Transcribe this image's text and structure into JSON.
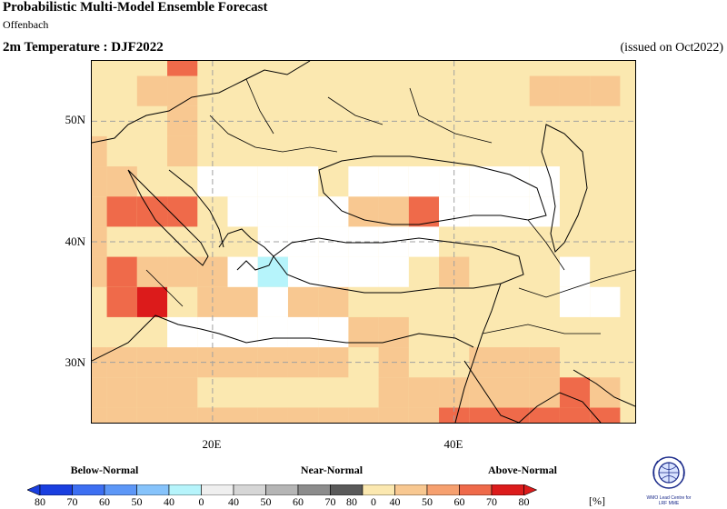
{
  "header": {
    "title": "Probabilistic Multi-Model Ensemble Forecast",
    "subtitle": "Offenbach",
    "variable": "2m Temperature : DJF2022",
    "issued": "(issued on Oct2022)"
  },
  "map": {
    "lat_labels": [
      "50N",
      "40N",
      "30N"
    ],
    "lon_labels": [
      "20E",
      "40E"
    ],
    "extent": {
      "lon_min": 10,
      "lon_max": 55,
      "lat_min": 25,
      "lat_max": 55
    },
    "grid_deg": 2.5,
    "base_category": "Above-Normal 40-50",
    "cells": [
      {
        "lon": 17.5,
        "lat": 52.5,
        "pct": 55
      },
      {
        "lon": 15,
        "lat": 52.5,
        "pct": 55
      },
      {
        "lon": 17.5,
        "lat": 50,
        "pct": 55
      },
      {
        "lon": 17.5,
        "lat": 55,
        "pct": 65
      },
      {
        "lon": 47.5,
        "lat": 52.5,
        "pct": 55
      },
      {
        "lon": 50,
        "lat": 52.5,
        "pct": 55
      },
      {
        "lon": 52.5,
        "lat": 52.5,
        "pct": 55
      },
      {
        "lon": 10,
        "lat": 47.5,
        "pct": 55
      },
      {
        "lon": 10,
        "lat": 45,
        "pct": 55
      },
      {
        "lon": 10,
        "lat": 42.5,
        "pct": 55
      },
      {
        "lon": 10,
        "lat": 40,
        "pct": 55
      },
      {
        "lon": 12.5,
        "lat": 45,
        "pct": 55
      },
      {
        "lon": 12.5,
        "lat": 42.5,
        "pct": 65
      },
      {
        "lon": 15,
        "lat": 42.5,
        "pct": 65
      },
      {
        "lon": 17.5,
        "lat": 42.5,
        "pct": 65
      },
      {
        "lon": 35,
        "lat": 42.5,
        "pct": 55
      },
      {
        "lon": 37.5,
        "lat": 42.5,
        "pct": 65
      },
      {
        "lon": 32.5,
        "lat": 42.5,
        "pct": 55
      },
      {
        "lon": 10,
        "lat": 37.5,
        "pct": 55
      },
      {
        "lon": 12.5,
        "lat": 37.5,
        "pct": 65
      },
      {
        "lon": 12.5,
        "lat": 35,
        "pct": 65
      },
      {
        "lon": 15,
        "lat": 35,
        "pct": 75
      },
      {
        "lon": 15,
        "lat": 37.5,
        "pct": 55
      },
      {
        "lon": 17.5,
        "lat": 37.5,
        "pct": 55
      },
      {
        "lon": 20,
        "lat": 37.5,
        "pct": 55
      },
      {
        "lon": 20,
        "lat": 35,
        "pct": 55
      },
      {
        "lon": 22.5,
        "lat": 35,
        "pct": 55
      },
      {
        "lon": 27.5,
        "lat": 35,
        "pct": 55
      },
      {
        "lon": 30,
        "lat": 35,
        "pct": 55
      },
      {
        "lon": 32.5,
        "lat": 32.5,
        "pct": 55
      },
      {
        "lon": 35,
        "lat": 32.5,
        "pct": 55
      },
      {
        "lon": 35,
        "lat": 30,
        "pct": 55
      },
      {
        "lon": 35,
        "lat": 27.5,
        "pct": 55
      },
      {
        "lon": 30,
        "lat": 30,
        "pct": 55
      },
      {
        "lon": 27.5,
        "lat": 30,
        "pct": 55
      },
      {
        "lon": 25,
        "lat": 30,
        "pct": 55
      },
      {
        "lon": 22.5,
        "lat": 30,
        "pct": 55
      },
      {
        "lon": 20,
        "lat": 30,
        "pct": 55
      },
      {
        "lon": 17.5,
        "lat": 30,
        "pct": 55
      },
      {
        "lon": 15,
        "lat": 30,
        "pct": 55
      },
      {
        "lon": 12.5,
        "lat": 30,
        "pct": 55
      },
      {
        "lon": 10,
        "lat": 30,
        "pct": 55
      },
      {
        "lon": 10,
        "lat": 27.5,
        "pct": 55
      },
      {
        "lon": 12.5,
        "lat": 27.5,
        "pct": 55
      },
      {
        "lon": 15,
        "lat": 27.5,
        "pct": 55
      },
      {
        "lon": 17.5,
        "lat": 27.5,
        "pct": 55
      },
      {
        "lon": 10,
        "lat": 25,
        "pct": 55
      },
      {
        "lon": 12.5,
        "lat": 25,
        "pct": 55
      },
      {
        "lon": 15,
        "lat": 25,
        "pct": 55
      },
      {
        "lon": 17.5,
        "lat": 25,
        "pct": 55
      },
      {
        "lon": 20,
        "lat": 25,
        "pct": 55
      },
      {
        "lon": 22.5,
        "lat": 25,
        "pct": 55
      },
      {
        "lon": 25,
        "lat": 25,
        "pct": 55
      },
      {
        "lon": 27.5,
        "lat": 25,
        "pct": 55
      },
      {
        "lon": 30,
        "lat": 25,
        "pct": 55
      },
      {
        "lon": 32.5,
        "lat": 25,
        "pct": 55
      },
      {
        "lon": 35,
        "lat": 25,
        "pct": 55
      },
      {
        "lon": 37.5,
        "lat": 25,
        "pct": 55
      },
      {
        "lon": 40,
        "lat": 25,
        "pct": 65
      },
      {
        "lon": 42.5,
        "lat": 25,
        "pct": 65
      },
      {
        "lon": 45,
        "lat": 25,
        "pct": 65
      },
      {
        "lon": 47.5,
        "lat": 25,
        "pct": 65
      },
      {
        "lon": 50,
        "lat": 25,
        "pct": 65
      },
      {
        "lon": 52.5,
        "lat": 25,
        "pct": 65
      },
      {
        "lon": 37.5,
        "lat": 27.5,
        "pct": 55
      },
      {
        "lon": 40,
        "lat": 27.5,
        "pct": 55
      },
      {
        "lon": 42.5,
        "lat": 27.5,
        "pct": 55
      },
      {
        "lon": 45,
        "lat": 27.5,
        "pct": 55
      },
      {
        "lon": 47.5,
        "lat": 27.5,
        "pct": 55
      },
      {
        "lon": 50,
        "lat": 27.5,
        "pct": 65
      },
      {
        "lon": 52.5,
        "lat": 27.5,
        "pct": 55
      },
      {
        "lon": 42.5,
        "lat": 30,
        "pct": 55
      },
      {
        "lon": 45,
        "lat": 30,
        "pct": 55
      },
      {
        "lon": 47.5,
        "lat": 30,
        "pct": 55
      },
      {
        "lon": 40,
        "lat": 37.5,
        "pct": 55
      },
      {
        "lon": 17.5,
        "lat": 47.5,
        "pct": 50
      },
      {
        "lon": 20,
        "lat": 45,
        "pct": 0
      },
      {
        "lon": 22.5,
        "lat": 45,
        "pct": 0
      },
      {
        "lon": 25,
        "lat": 45,
        "pct": 0
      },
      {
        "lon": 27.5,
        "lat": 45,
        "pct": 0
      },
      {
        "lon": 22.5,
        "lat": 42.5,
        "pct": 0
      },
      {
        "lon": 25,
        "lat": 42.5,
        "pct": 0
      },
      {
        "lon": 27.5,
        "lat": 42.5,
        "pct": 0
      },
      {
        "lon": 30,
        "lat": 42.5,
        "pct": 0
      },
      {
        "lon": 25,
        "lat": 40,
        "pct": 0
      },
      {
        "lon": 27.5,
        "lat": 40,
        "pct": 0
      },
      {
        "lon": 30,
        "lat": 40,
        "pct": 0
      },
      {
        "lon": 32.5,
        "lat": 40,
        "pct": 0
      },
      {
        "lon": 35,
        "lat": 40,
        "pct": 0
      },
      {
        "lon": 37.5,
        "lat": 40,
        "pct": 0
      },
      {
        "lon": 22.5,
        "lat": 37.5,
        "pct": 0
      },
      {
        "lon": 27.5,
        "lat": 37.5,
        "pct": 0
      },
      {
        "lon": 30,
        "lat": 37.5,
        "pct": 0
      },
      {
        "lon": 32.5,
        "lat": 37.5,
        "pct": 0
      },
      {
        "lon": 35,
        "lat": 37.5,
        "pct": 0
      },
      {
        "lon": 25,
        "lat": 35,
        "pct": 0
      },
      {
        "lon": 32.5,
        "lat": 45,
        "pct": 0
      },
      {
        "lon": 35,
        "lat": 45,
        "pct": 0
      },
      {
        "lon": 37.5,
        "lat": 45,
        "pct": 0
      },
      {
        "lon": 40,
        "lat": 45,
        "pct": 0
      },
      {
        "lon": 42.5,
        "lat": 45,
        "pct": 0
      },
      {
        "lon": 45,
        "lat": 45,
        "pct": 0
      },
      {
        "lon": 47.5,
        "lat": 45,
        "pct": 0
      },
      {
        "lon": 40,
        "lat": 42.5,
        "pct": 0
      },
      {
        "lon": 42.5,
        "lat": 42.5,
        "pct": 0
      },
      {
        "lon": 45,
        "lat": 42.5,
        "pct": 0
      },
      {
        "lon": 47.5,
        "lat": 42.5,
        "pct": 0
      },
      {
        "lon": 17.5,
        "lat": 32.5,
        "pct": 0
      },
      {
        "lon": 20,
        "lat": 32.5,
        "pct": 0
      },
      {
        "lon": 22.5,
        "lat": 32.5,
        "pct": 0
      },
      {
        "lon": 25,
        "lat": 32.5,
        "pct": 0
      },
      {
        "lon": 27.5,
        "lat": 32.5,
        "pct": 0
      },
      {
        "lon": 30,
        "lat": 32.5,
        "pct": 0
      },
      {
        "lon": 50,
        "lat": 35,
        "pct": 0
      },
      {
        "lon": 52.5,
        "lat": 35,
        "pct": 0
      },
      {
        "lon": 50,
        "lat": 37.5,
        "pct": 0
      },
      {
        "lon": 25,
        "lat": 37.5,
        "pct": -45
      }
    ]
  },
  "legend": {
    "below_label": "Below-Normal",
    "near_label": "Near-Normal",
    "above_label": "Above-Normal",
    "unit": "[%]",
    "below_colors": [
      "#1a3fe0",
      "#3d6ff2",
      "#5d97f7",
      "#86c3fb",
      "#b6f4fb"
    ],
    "near_colors": [
      "#efefef",
      "#d6d6d6",
      "#b5b5b5",
      "#8c8c8c",
      "#5a5a5a"
    ],
    "above_colors": [
      "#fbe8b0",
      "#f8c891",
      "#f6a06f",
      "#ef6a4a",
      "#dc1b1b"
    ],
    "ticks": [
      "80",
      "70",
      "60",
      "50",
      "40",
      "0",
      "40",
      "50",
      "60",
      "70",
      "80",
      "0",
      "40",
      "50",
      "60",
      "70",
      "80"
    ]
  },
  "logo": {
    "text": "WMO Lead Centre for\nLRF MME"
  },
  "colors": {
    "white_cell": "#ffffff",
    "gridline": "#a0a0a0",
    "coastline": "#000000"
  }
}
